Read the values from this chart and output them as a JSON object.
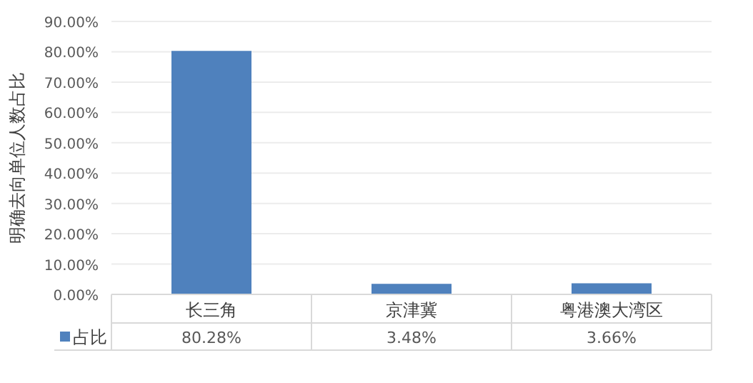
{
  "chart_data": {
    "type": "bar",
    "ylabel": "明确去向单位人数占比",
    "categories": [
      "长三角",
      "京津冀",
      "粤港澳大湾区"
    ],
    "series": [
      {
        "name": "占比",
        "color": "#4f81bd",
        "values": [
          80.28,
          3.48,
          3.66
        ],
        "value_labels": [
          "80.28%",
          "3.48%",
          "3.66%"
        ]
      }
    ],
    "ylim": [
      0,
      90
    ],
    "yticks": [
      {
        "value": 0,
        "label": "0.00%"
      },
      {
        "value": 10,
        "label": "10.00%"
      },
      {
        "value": 20,
        "label": "20.00%"
      },
      {
        "value": 30,
        "label": "30.00%"
      },
      {
        "value": 40,
        "label": "40.00%"
      },
      {
        "value": 50,
        "label": "50.00%"
      },
      {
        "value": 60,
        "label": "60.00%"
      },
      {
        "value": 70,
        "label": "70.00%"
      },
      {
        "value": 80,
        "label": "80.00%"
      },
      {
        "value": 90,
        "label": "90.00%"
      }
    ],
    "grid": "y",
    "legend": "bottom left"
  }
}
